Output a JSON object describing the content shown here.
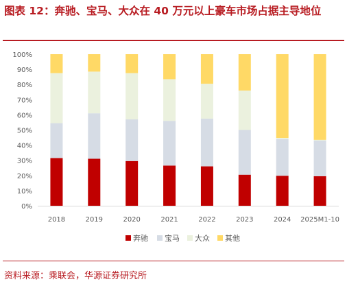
{
  "title": "图表 12：奔驰、宝马、大众在 40 万元以上豪车市场占据主导地位",
  "source": "资料来源：乘联会，华源证券研究所",
  "colors": {
    "title": "#b81c22",
    "axis_text": "#595959",
    "gridline": "#d9d9d9"
  },
  "chart_data": {
    "type": "bar",
    "stacked": true,
    "categories": [
      "2018",
      "2019",
      "2020",
      "2021",
      "2022",
      "2023",
      "2024",
      "2025M1-10"
    ],
    "yticks": [
      "0%",
      "10%",
      "20%",
      "30%",
      "40%",
      "50%",
      "60%",
      "70%",
      "80%",
      "90%",
      "100%"
    ],
    "ylim": [
      0,
      100
    ],
    "grid": false,
    "legend_position": "bottom",
    "series": [
      {
        "name": "奔驰",
        "color": "#c00000",
        "values": [
          31.5,
          31,
          29.5,
          26.5,
          26,
          20.5,
          19.8,
          19.5
        ]
      },
      {
        "name": "宝马",
        "color": "#d6dce5",
        "values": [
          23,
          30,
          27.5,
          29.5,
          31.5,
          29.5,
          24.2,
          23.5
        ]
      },
      {
        "name": "大众",
        "color": "#ebf1de",
        "values": [
          33,
          27.5,
          30.5,
          27.5,
          23,
          26,
          0.8,
          0.5
        ]
      },
      {
        "name": "其他",
        "color": "#ffd966",
        "values": [
          12.5,
          11.5,
          12.5,
          16.5,
          19.5,
          24,
          55.2,
          56.5
        ]
      }
    ]
  }
}
